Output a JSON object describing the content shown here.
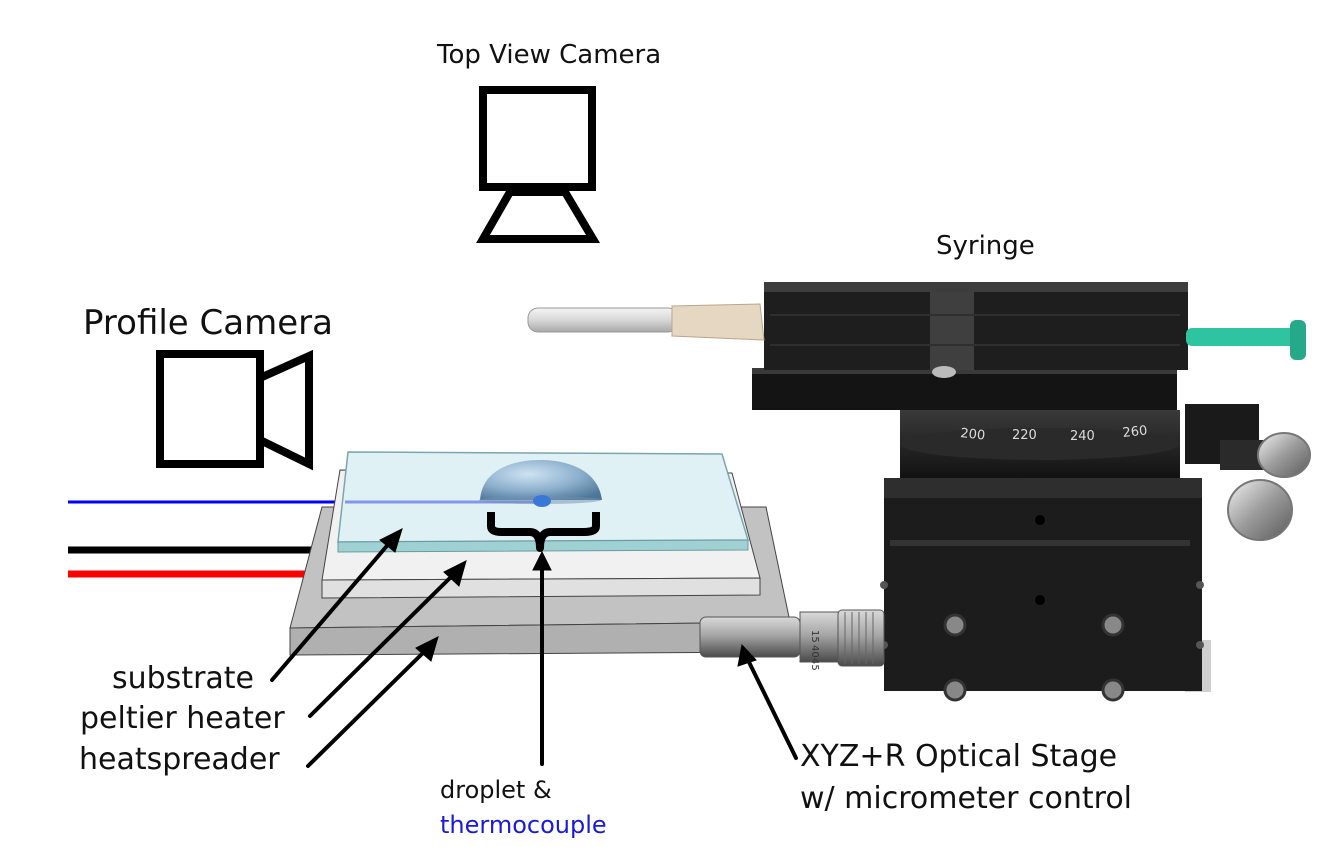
{
  "labels": {
    "top_view_camera": "Top View Camera",
    "syringe": "Syringe",
    "profile_camera": "Profile Camera",
    "substrate": "substrate",
    "peltier_heater": "peltier heater",
    "heatspreader": "heatspreader",
    "droplet": "droplet &",
    "thermocouple": "thermocouple",
    "stage_line1": "XYZ+R Optical Stage",
    "stage_line2": "w/ micrometer control"
  },
  "rotation_scale": [
    "200",
    "220",
    "240",
    "260"
  ],
  "micrometer_scale": [
    "15",
    "40",
    "45"
  ],
  "colors": {
    "thermocouple_text": "#1a1adb",
    "wire_blue": "#0000ff",
    "wire_black": "#000000",
    "wire_red": "#ff0000",
    "glass": "#dff1f5",
    "heater": "#eeeeee",
    "heatspreader": "#c7c7c7",
    "stage_body": "#1c1c1c",
    "syringe_plunger": "#2fc4a0"
  }
}
